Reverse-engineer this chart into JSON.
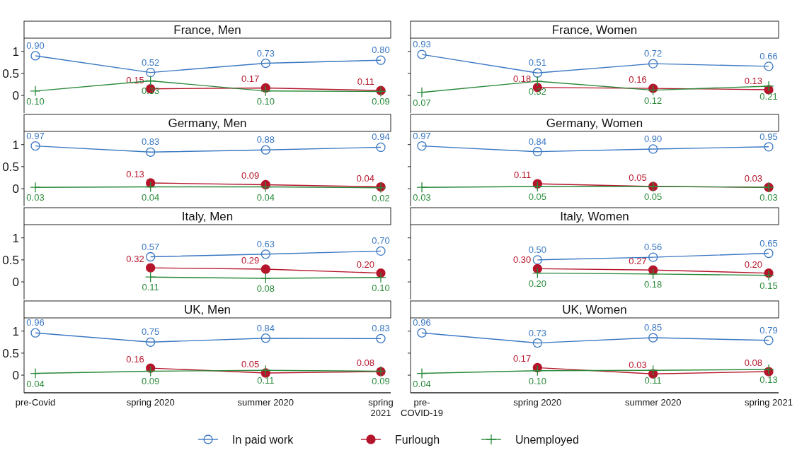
{
  "chart_data": [
    {
      "type": "line",
      "title": "France, Men",
      "categories": [
        "pre-Covid",
        "spring 2020",
        "summer 2020",
        "spring 2021"
      ],
      "ylim": [
        -0.4,
        1.3
      ],
      "yticks": [
        0,
        0.5,
        1
      ],
      "tick_labels": "y",
      "legend": "bottom",
      "series": [
        {
          "name": "In paid work",
          "color": "#3a78c2",
          "marker": "circle",
          "values": [
            0.9,
            0.52,
            0.73,
            0.8
          ],
          "value_labels": [
            "0.90",
            "0.52",
            "0.73",
            "0.80"
          ]
        },
        {
          "name": "Furlough",
          "color": "#b5152b",
          "marker": "circle",
          "values": [
            null,
            0.15,
            0.17,
            0.11
          ],
          "value_labels": [
            null,
            "0.15",
            "0.17",
            "0.11"
          ]
        },
        {
          "name": "Unemployed",
          "color": "#2a8a3a",
          "marker": "cross",
          "values": [
            0.1,
            0.33,
            0.1,
            0.09
          ],
          "value_labels": [
            "0.10",
            "0.33",
            "0.10",
            "0.09"
          ]
        }
      ]
    },
    {
      "type": "line",
      "title": "France, Women",
      "categories": [
        "pre-COVID-19",
        "spring 2020",
        "summer 2020",
        "spring 2021"
      ],
      "ylim": [
        -0.4,
        1.3
      ],
      "yticks": [
        0,
        0.5,
        1
      ],
      "tick_labels": false,
      "legend": "bottom",
      "series": [
        {
          "name": "In paid work",
          "color": "#3a78c2",
          "marker": "circle",
          "values": [
            0.93,
            0.51,
            0.72,
            0.66
          ],
          "value_labels": [
            "0.93",
            "0.51",
            "0.72",
            "0.66"
          ]
        },
        {
          "name": "Furlough",
          "color": "#b5152b",
          "marker": "circle",
          "values": [
            null,
            0.18,
            0.16,
            0.13
          ],
          "value_labels": [
            null,
            "0.18",
            "0.16",
            "0.13"
          ]
        },
        {
          "name": "Unemployed",
          "color": "#2a8a3a",
          "marker": "cross",
          "values": [
            0.07,
            0.32,
            0.12,
            0.21
          ],
          "value_labels": [
            "0.07",
            "0.32",
            "0.12",
            "0.21"
          ]
        }
      ]
    },
    {
      "type": "line",
      "title": "Germany, Men",
      "categories": [
        "pre-Covid",
        "spring 2020",
        "summer 2020",
        "spring 2021"
      ],
      "ylim": [
        -0.4,
        1.3
      ],
      "yticks": [
        0,
        0.5,
        1
      ],
      "tick_labels": "y",
      "legend": "bottom",
      "series": [
        {
          "name": "In paid work",
          "color": "#3a78c2",
          "marker": "circle",
          "values": [
            0.97,
            0.83,
            0.88,
            0.94
          ],
          "value_labels": [
            "0.97",
            "0.83",
            "0.88",
            "0.94"
          ]
        },
        {
          "name": "Furlough",
          "color": "#b5152b",
          "marker": "circle",
          "values": [
            null,
            0.13,
            0.09,
            0.04
          ],
          "value_labels": [
            null,
            "0.13",
            "0.09",
            "0.04"
          ]
        },
        {
          "name": "Unemployed",
          "color": "#2a8a3a",
          "marker": "cross",
          "values": [
            0.03,
            0.04,
            0.04,
            0.02
          ],
          "value_labels": [
            "0.03",
            "0.04",
            "0.04",
            "0.02"
          ]
        }
      ]
    },
    {
      "type": "line",
      "title": "Germany, Women",
      "categories": [
        "pre-COVID-19",
        "spring 2020",
        "summer 2020",
        "spring 2021"
      ],
      "ylim": [
        -0.4,
        1.3
      ],
      "yticks": [
        0,
        0.5,
        1
      ],
      "tick_labels": false,
      "legend": "bottom",
      "series": [
        {
          "name": "In paid work",
          "color": "#3a78c2",
          "marker": "circle",
          "values": [
            0.97,
            0.84,
            0.9,
            0.95
          ],
          "value_labels": [
            "0.97",
            "0.84",
            "0.90",
            "0.95"
          ]
        },
        {
          "name": "Furlough",
          "color": "#b5152b",
          "marker": "circle",
          "values": [
            null,
            0.11,
            0.05,
            0.03
          ],
          "value_labels": [
            null,
            "0.11",
            "0.05",
            "0.03"
          ]
        },
        {
          "name": "Unemployed",
          "color": "#2a8a3a",
          "marker": "cross",
          "values": [
            0.03,
            0.05,
            0.05,
            0.03
          ],
          "value_labels": [
            "0.03",
            "0.05",
            "0.05",
            "0.03"
          ]
        }
      ]
    },
    {
      "type": "line",
      "title": "Italy, Men",
      "categories": [
        "pre-Covid",
        "spring 2020",
        "summer 2020",
        "spring 2021"
      ],
      "ylim": [
        -0.4,
        1.3
      ],
      "yticks": [
        0,
        0.5,
        1
      ],
      "tick_labels": "y",
      "legend": "bottom",
      "series": [
        {
          "name": "In paid work",
          "color": "#3a78c2",
          "marker": "circle",
          "values": [
            null,
            0.57,
            0.63,
            0.7
          ],
          "value_labels": [
            null,
            "0.57",
            "0.63",
            "0.70"
          ]
        },
        {
          "name": "Furlough",
          "color": "#b5152b",
          "marker": "circle",
          "values": [
            null,
            0.32,
            0.29,
            0.2
          ],
          "value_labels": [
            null,
            "0.32",
            "0.29",
            "0.20"
          ]
        },
        {
          "name": "Unemployed",
          "color": "#2a8a3a",
          "marker": "cross",
          "values": [
            null,
            0.11,
            0.08,
            0.1
          ],
          "value_labels": [
            null,
            "0.11",
            "0.08",
            "0.10"
          ]
        }
      ]
    },
    {
      "type": "line",
      "title": "Italy, Women",
      "categories": [
        "pre-COVID-19",
        "spring 2020",
        "summer 2020",
        "spring 2021"
      ],
      "ylim": [
        -0.4,
        1.3
      ],
      "yticks": [
        0,
        0.5,
        1
      ],
      "tick_labels": false,
      "legend": "bottom",
      "series": [
        {
          "name": "In paid work",
          "color": "#3a78c2",
          "marker": "circle",
          "values": [
            null,
            0.5,
            0.56,
            0.65
          ],
          "value_labels": [
            null,
            "0.50",
            "0.56",
            "0.65"
          ]
        },
        {
          "name": "Furlough",
          "color": "#b5152b",
          "marker": "circle",
          "values": [
            null,
            0.3,
            0.27,
            0.2
          ],
          "value_labels": [
            null,
            "0.30",
            "0.27",
            "0.20"
          ]
        },
        {
          "name": "Unemployed",
          "color": "#2a8a3a",
          "marker": "cross",
          "values": [
            null,
            0.2,
            0.18,
            0.15
          ],
          "value_labels": [
            null,
            "0.20",
            "0.18",
            "0.15"
          ]
        }
      ]
    },
    {
      "type": "line",
      "title": "UK, Men",
      "categories": [
        "pre-Covid",
        "spring 2020",
        "summer 2020",
        "spring 2021"
      ],
      "ylim": [
        -0.4,
        1.3
      ],
      "yticks": [
        0,
        0.5,
        1
      ],
      "legend": "bottom",
      "series": [
        {
          "name": "In paid work",
          "color": "#3a78c2",
          "marker": "circle",
          "values": [
            0.96,
            0.75,
            0.84,
            0.83
          ],
          "value_labels": [
            "0.96",
            "0.75",
            "0.84",
            "0.83"
          ]
        },
        {
          "name": "Furlough",
          "color": "#b5152b",
          "marker": "circle",
          "values": [
            null,
            0.16,
            0.05,
            0.08
          ],
          "value_labels": [
            null,
            "0.16",
            "0.05",
            "0.08"
          ]
        },
        {
          "name": "Unemployed",
          "color": "#2a8a3a",
          "marker": "cross",
          "values": [
            0.04,
            0.09,
            0.11,
            0.09
          ],
          "value_labels": [
            "0.04",
            "0.09",
            "0.11",
            "0.09"
          ]
        }
      ]
    },
    {
      "type": "line",
      "title": "UK, Women",
      "categories": [
        "pre-COVID-19",
        "spring 2020",
        "summer 2020",
        "spring 2021"
      ],
      "ylim": [
        -0.4,
        1.3
      ],
      "yticks": [
        0,
        0.5,
        1
      ],
      "tick_labels": "x",
      "legend": "bottom",
      "series": [
        {
          "name": "In paid work",
          "color": "#3a78c2",
          "marker": "circle",
          "values": [
            0.96,
            0.73,
            0.85,
            0.79
          ],
          "value_labels": [
            "0.96",
            "0.73",
            "0.85",
            "0.79"
          ]
        },
        {
          "name": "Furlough",
          "color": "#b5152b",
          "marker": "circle",
          "values": [
            null,
            0.17,
            0.03,
            0.08
          ],
          "value_labels": [
            null,
            "0.17",
            "0.03",
            "0.08"
          ]
        },
        {
          "name": "Unemployed",
          "color": "#2a8a3a",
          "marker": "cross",
          "values": [
            0.04,
            0.1,
            0.11,
            0.13
          ],
          "value_labels": [
            "0.04",
            "0.10",
            "0.11",
            "0.13"
          ]
        }
      ]
    }
  ]
}
